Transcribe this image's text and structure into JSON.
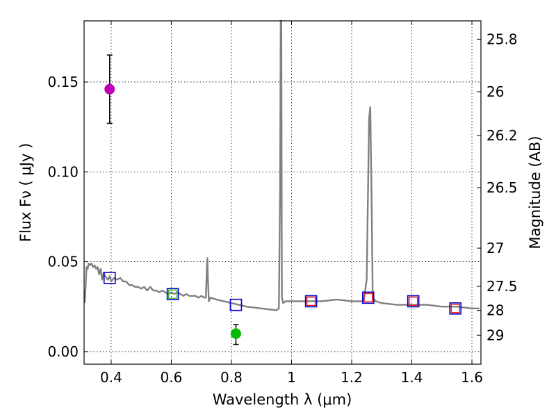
{
  "chart_data": {
    "type": "line",
    "xlabel": "Wavelength  λ (μm)",
    "ylabel_left": "Flux  Fν  ( μJy )",
    "ylabel_right": "Magnitude (AB)",
    "xlim": [
      0.31,
      1.63
    ],
    "ylim": [
      -0.007,
      0.184
    ],
    "x_ticks": [
      0.4,
      0.6,
      0.8,
      1.0,
      1.2,
      1.4,
      1.6
    ],
    "x_tick_labels": [
      "0.4",
      "0.6",
      "0.8",
      "1",
      "1.2",
      "1.4",
      "1.6"
    ],
    "y_ticks": [
      0.0,
      0.05,
      0.1,
      0.15
    ],
    "y_tick_labels": [
      "0.00",
      "0.05",
      "0.10",
      "0.15"
    ],
    "mag_ticks": [
      25.8,
      26.0,
      26.2,
      26.5,
      27.0,
      27.5,
      28.0,
      29.0
    ],
    "mag_tick_labels": [
      "25.8",
      "26",
      "26.2",
      "26.5",
      "27",
      "27.5",
      "28",
      "29"
    ],
    "grid": true,
    "colors": {
      "sed": "#808080",
      "model_box": "#0000cc",
      "observed_box": "#ff0000",
      "green_box": "#33aa33",
      "magenta_point": "#bb00bb",
      "green_point": "#00bb00"
    },
    "sed_spectrum": {
      "name": "model SED",
      "x": [
        0.312,
        0.315,
        0.318,
        0.322,
        0.325,
        0.33,
        0.335,
        0.34,
        0.345,
        0.35,
        0.355,
        0.36,
        0.365,
        0.37,
        0.375,
        0.38,
        0.385,
        0.39,
        0.395,
        0.4,
        0.41,
        0.42,
        0.43,
        0.44,
        0.45,
        0.46,
        0.47,
        0.48,
        0.49,
        0.5,
        0.51,
        0.52,
        0.53,
        0.54,
        0.55,
        0.56,
        0.57,
        0.58,
        0.59,
        0.6,
        0.61,
        0.62,
        0.63,
        0.64,
        0.65,
        0.66,
        0.67,
        0.68,
        0.69,
        0.7,
        0.71,
        0.715,
        0.718,
        0.72,
        0.722,
        0.725,
        0.73,
        0.75,
        0.8,
        0.85,
        0.9,
        0.95,
        0.958,
        0.962,
        0.964,
        0.966,
        0.968,
        0.972,
        0.98,
        1.0,
        1.05,
        1.1,
        1.15,
        1.2,
        1.24,
        1.25,
        1.258,
        1.262,
        1.266,
        1.27,
        1.28,
        1.3,
        1.35,
        1.4,
        1.45,
        1.5,
        1.55,
        1.6,
        1.625
      ],
      "y": [
        0.027,
        0.036,
        0.047,
        0.046,
        0.049,
        0.048,
        0.049,
        0.047,
        0.048,
        0.046,
        0.047,
        0.043,
        0.046,
        0.04,
        0.044,
        0.042,
        0.041,
        0.04,
        0.042,
        0.039,
        0.041,
        0.04,
        0.041,
        0.039,
        0.039,
        0.037,
        0.037,
        0.036,
        0.036,
        0.035,
        0.036,
        0.034,
        0.036,
        0.034,
        0.034,
        0.033,
        0.034,
        0.033,
        0.032,
        0.033,
        0.032,
        0.033,
        0.032,
        0.031,
        0.032,
        0.031,
        0.031,
        0.031,
        0.03,
        0.031,
        0.03,
        0.03,
        0.045,
        0.052,
        0.04,
        0.028,
        0.03,
        0.029,
        0.027,
        0.025,
        0.024,
        0.023,
        0.024,
        0.09,
        0.184,
        0.184,
        0.03,
        0.027,
        0.028,
        0.028,
        0.028,
        0.028,
        0.029,
        0.028,
        0.028,
        0.04,
        0.13,
        0.136,
        0.09,
        0.03,
        0.028,
        0.027,
        0.026,
        0.026,
        0.026,
        0.025,
        0.025,
        0.024,
        0.024
      ]
    },
    "model_photometry_boxes": {
      "name": "model photometry",
      "x": [
        0.395,
        0.605,
        0.815,
        1.065,
        1.255,
        1.405,
        1.545
      ],
      "y": [
        0.041,
        0.032,
        0.026,
        0.028,
        0.03,
        0.028,
        0.024
      ]
    },
    "observed_boxes": {
      "name": "observed bands",
      "x": [
        1.065,
        1.255,
        1.405,
        1.545
      ],
      "y": [
        0.028,
        0.03,
        0.028,
        0.024
      ]
    },
    "green_box": {
      "x": 0.605,
      "y": 0.032
    },
    "data_points": [
      {
        "name": "magenta measurement",
        "x": 0.395,
        "y": 0.146,
        "yerr_low": 0.127,
        "yerr_high": 0.165,
        "color": "#bb00bb"
      },
      {
        "name": "green measurement",
        "x": 0.815,
        "y": 0.01,
        "yerr_low": 0.004,
        "yerr_high": 0.015,
        "color": "#00bb00"
      }
    ]
  }
}
